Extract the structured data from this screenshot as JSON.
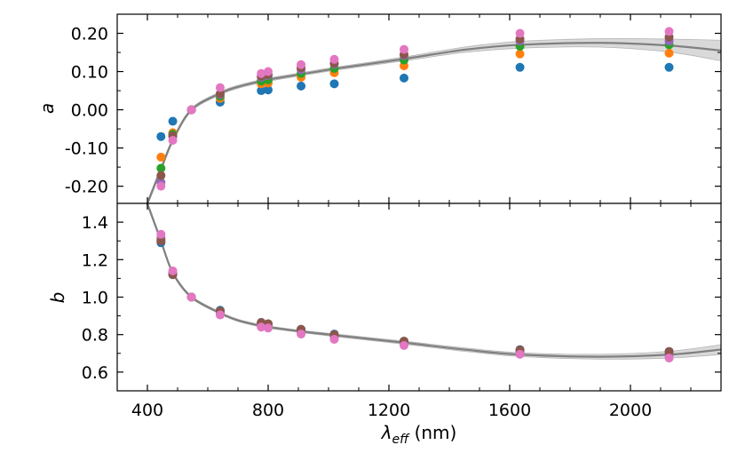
{
  "chart_data": {
    "type": "scatter",
    "xlabel": "λ_eff (nm)",
    "xlabel_main": "λ",
    "xlabel_sub": "eff",
    "xlabel_unit": " (nm)",
    "xlim": [
      300,
      2300
    ],
    "x_ticks": [
      400,
      800,
      1200,
      1600,
      2000
    ],
    "x_tick_labels": [
      "400",
      "800",
      "1200",
      "1600",
      "2000"
    ],
    "colors": [
      "#1f77b4",
      "#ff7f0e",
      "#2ca02c",
      "#9467bd",
      "#8c564b",
      "#e377c2"
    ],
    "curve_color": "#808080",
    "band_color": "#d9d9d9",
    "panels": [
      {
        "id": "a",
        "ylabel": "a",
        "ylim": [
          -0.245,
          0.25
        ],
        "y_ticks": [
          -0.2,
          -0.1,
          0.0,
          0.1,
          0.2
        ],
        "y_tick_labels": [
          "-0.20",
          "-0.10",
          "0.00",
          "0.10",
          "0.20"
        ],
        "wavelengths": [
          445,
          484,
          546,
          641,
          777,
          800,
          909,
          1019,
          1250,
          1634,
          2128
        ],
        "series": [
          {
            "values": [
              -0.07,
              -0.03,
              0.0,
              0.02,
              0.05,
              0.052,
              0.062,
              0.068,
              0.083,
              0.111,
              0.111
            ]
          },
          {
            "values": [
              -0.124,
              -0.06,
              0.0,
              0.03,
              0.068,
              0.07,
              0.085,
              0.097,
              0.115,
              0.146,
              0.148
            ]
          },
          {
            "values": [
              -0.153,
              -0.064,
              0.0,
              0.035,
              0.075,
              0.078,
              0.095,
              0.108,
              0.13,
              0.166,
              0.17
            ]
          },
          {
            "values": [
              -0.19,
              -0.07,
              0.0,
              0.04,
              0.085,
              0.09,
              0.105,
              0.12,
              0.142,
              0.18,
              0.18
            ]
          },
          {
            "values": [
              -0.172,
              -0.068,
              0.0,
              0.042,
              0.088,
              0.092,
              0.11,
              0.122,
              0.145,
              0.185,
              0.19
            ]
          },
          {
            "values": [
              -0.2,
              -0.08,
              0.0,
              0.058,
              0.095,
              0.1,
              0.118,
              0.132,
              0.158,
              0.2,
              0.205
            ]
          }
        ],
        "curve": {
          "x": [
            400,
            445,
            484,
            546,
            641,
            700,
            777,
            800,
            909,
            1019,
            1250,
            1450,
            1634,
            1900,
            2128,
            2300
          ],
          "y": [
            -0.245,
            -0.155,
            -0.08,
            0.0,
            0.043,
            0.06,
            0.075,
            0.079,
            0.093,
            0.107,
            0.133,
            0.157,
            0.17,
            0.175,
            0.168,
            0.155
          ],
          "band_halfwidth": [
            0.006,
            0.006,
            0.005,
            0.004,
            0.004,
            0.004,
            0.004,
            0.004,
            0.004,
            0.004,
            0.005,
            0.007,
            0.009,
            0.011,
            0.017,
            0.027
          ]
        }
      },
      {
        "id": "b",
        "ylabel": "b",
        "ylim": [
          0.5,
          1.5
        ],
        "y_ticks": [
          0.6,
          0.8,
          1.0,
          1.2,
          1.4
        ],
        "y_tick_labels": [
          "0.6",
          "0.8",
          "1.0",
          "1.2",
          "1.4"
        ],
        "wavelengths": [
          445,
          484,
          546,
          641,
          777,
          800,
          909,
          1019,
          1250,
          1634,
          2128
        ],
        "series": [
          {
            "values": [
              1.29,
              1.12,
              1.0,
              0.93,
              0.865,
              0.857,
              0.828,
              0.803,
              0.765,
              0.72,
              0.71
            ]
          },
          {
            "values": [
              1.31,
              1.125,
              1.0,
              0.925,
              0.86,
              0.85,
              0.822,
              0.797,
              0.76,
              0.712,
              0.7
            ]
          },
          {
            "values": [
              1.305,
              1.13,
              1.0,
              0.92,
              0.858,
              0.848,
              0.818,
              0.793,
              0.755,
              0.708,
              0.697
            ]
          },
          {
            "values": [
              1.315,
              1.13,
              1.0,
              0.915,
              0.852,
              0.842,
              0.812,
              0.787,
              0.75,
              0.703,
              0.69
            ]
          },
          {
            "values": [
              1.3,
              1.12,
              1.0,
              0.925,
              0.865,
              0.858,
              0.828,
              0.8,
              0.765,
              0.718,
              0.71
            ]
          },
          {
            "values": [
              1.335,
              1.14,
              1.0,
              0.905,
              0.84,
              0.835,
              0.803,
              0.775,
              0.742,
              0.695,
              0.675
            ]
          }
        ],
        "curve": {
          "x": [
            395,
            420,
            445,
            484,
            546,
            641,
            700,
            777,
            800,
            909,
            1019,
            1250,
            1450,
            1634,
            1900,
            2128,
            2300
          ],
          "y": [
            1.52,
            1.41,
            1.3,
            1.13,
            1.0,
            0.915,
            0.876,
            0.846,
            0.84,
            0.817,
            0.797,
            0.757,
            0.72,
            0.693,
            0.682,
            0.693,
            0.72
          ],
          "band_halfwidth": [
            0.012,
            0.01,
            0.009,
            0.008,
            0.006,
            0.006,
            0.006,
            0.006,
            0.006,
            0.006,
            0.007,
            0.008,
            0.009,
            0.01,
            0.013,
            0.018,
            0.026
          ]
        }
      }
    ]
  }
}
